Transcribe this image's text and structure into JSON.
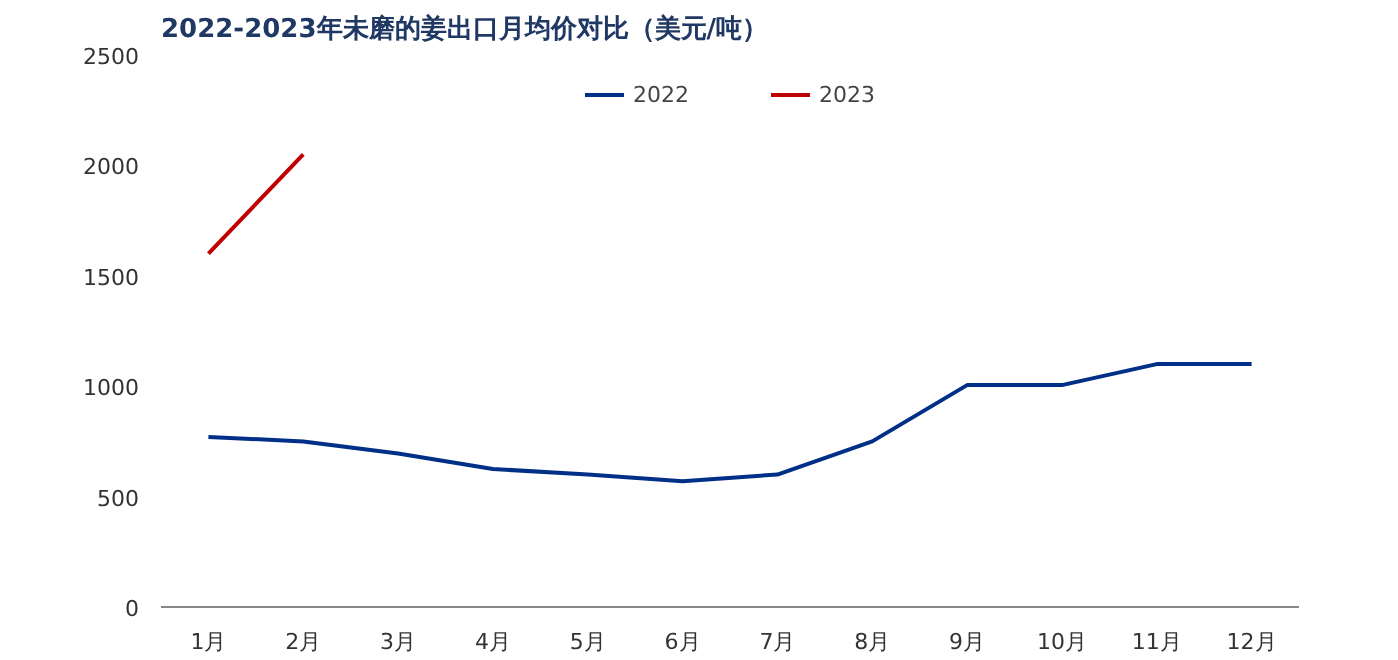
{
  "chart_data": {
    "type": "line",
    "title": "2022-2023年未磨的姜出口月均价对比（美元/吨）",
    "categories": [
      "1月",
      "2月",
      "3月",
      "4月",
      "5月",
      "6月",
      "7月",
      "8月",
      "9月",
      "10月",
      "11月",
      "12月"
    ],
    "series": [
      {
        "name": "2022",
        "color": "#002f87",
        "values": [
          770,
          750,
          695,
          625,
          600,
          570,
          600,
          750,
          1005,
          1005,
          1100,
          1100
        ]
      },
      {
        "name": "2023",
        "color": "#c00000",
        "values": [
          1600,
          2050,
          null,
          null,
          null,
          null,
          null,
          null,
          null,
          null,
          null,
          null
        ]
      }
    ],
    "ylim": [
      0,
      2500
    ],
    "yticks": [
      0,
      500,
      1000,
      1500,
      2000,
      2500
    ],
    "grid": false,
    "legend": "top",
    "marker": "none",
    "line_style": "solid"
  }
}
